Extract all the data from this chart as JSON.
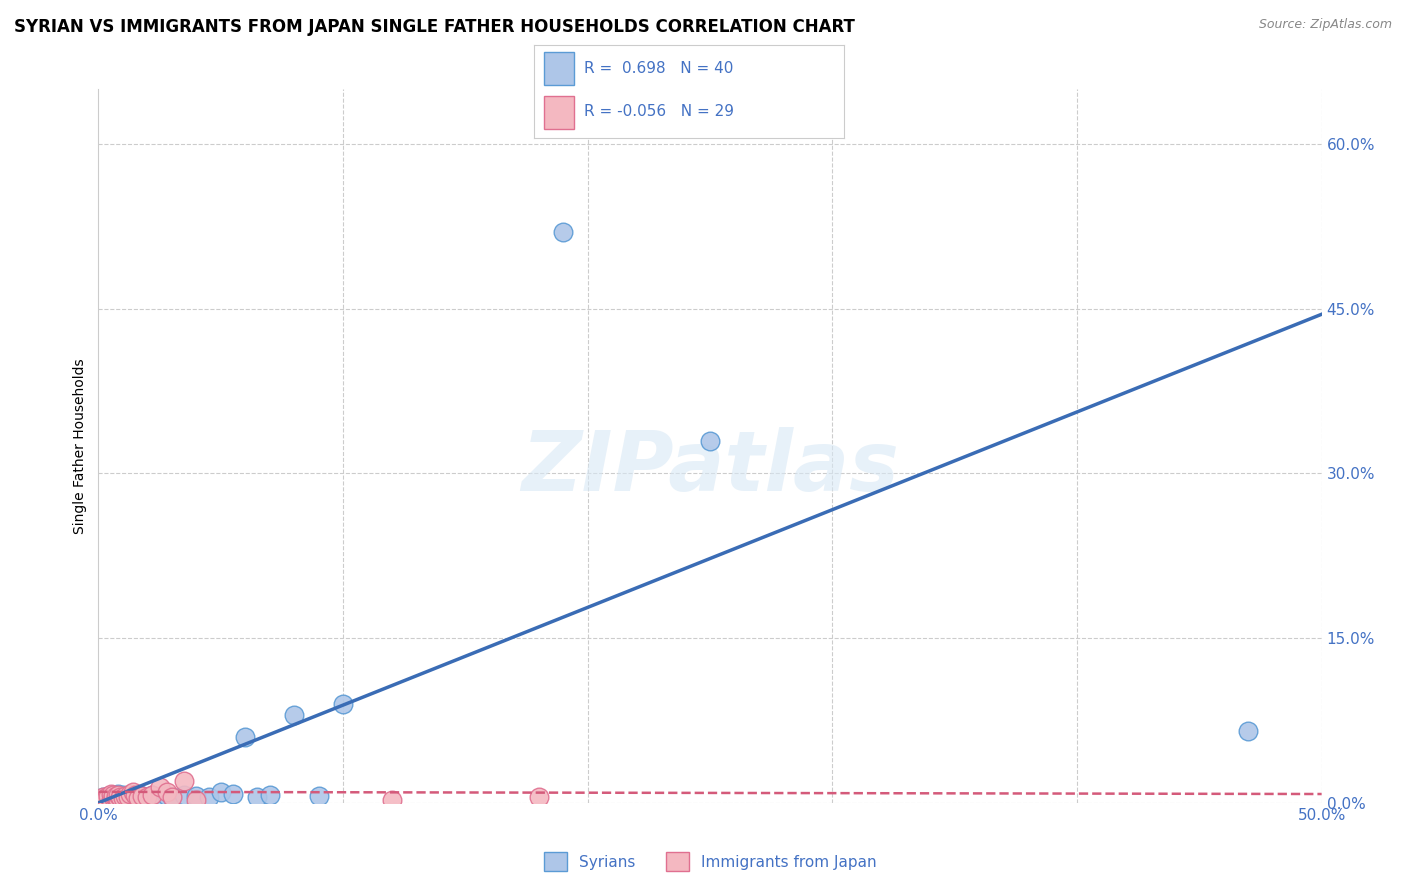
{
  "title": "SYRIAN VS IMMIGRANTS FROM JAPAN SINGLE FATHER HOUSEHOLDS CORRELATION CHART",
  "source": "Source: ZipAtlas.com",
  "ylabel": "Single Father Households",
  "xlim": [
    0.0,
    0.5
  ],
  "ylim": [
    0.0,
    0.65
  ],
  "ytick_labels": [
    "0.0%",
    "15.0%",
    "30.0%",
    "45.0%",
    "60.0%"
  ],
  "ytick_values": [
    0.0,
    0.15,
    0.3,
    0.45,
    0.6
  ],
  "grid_color": "#cccccc",
  "background_color": "#ffffff",
  "syrian_color": "#aec6e8",
  "syrian_edge_color": "#5b9bd5",
  "japan_color": "#f4b8c1",
  "japan_edge_color": "#e07090",
  "syrian_line_color": "#3a6cb5",
  "japan_line_color": "#d45a7a",
  "R_syrian": 0.698,
  "N_syrian": 40,
  "R_japan": -0.056,
  "N_japan": 29,
  "legend_text_color": "#4472c4",
  "title_fontsize": 12,
  "axis_label_fontsize": 10,
  "tick_fontsize": 11,
  "watermark": "ZIPatlas",
  "syrian_line_x0": 0.0,
  "syrian_line_y0": 0.0,
  "syrian_line_x1": 0.5,
  "syrian_line_y1": 0.445,
  "japan_line_x0": 0.0,
  "japan_line_y0": 0.01,
  "japan_line_x1": 0.5,
  "japan_line_y1": 0.008,
  "syrian_scatter_x": [
    0.002,
    0.003,
    0.004,
    0.005,
    0.006,
    0.006,
    0.007,
    0.007,
    0.008,
    0.008,
    0.009,
    0.01,
    0.01,
    0.011,
    0.012,
    0.013,
    0.014,
    0.015,
    0.016,
    0.017,
    0.018,
    0.02,
    0.022,
    0.025,
    0.028,
    0.03,
    0.035,
    0.04,
    0.045,
    0.05,
    0.055,
    0.06,
    0.065,
    0.07,
    0.08,
    0.09,
    0.1,
    0.19,
    0.25,
    0.47
  ],
  "syrian_scatter_y": [
    0.005,
    0.004,
    0.006,
    0.003,
    0.005,
    0.007,
    0.004,
    0.006,
    0.003,
    0.008,
    0.005,
    0.004,
    0.007,
    0.005,
    0.004,
    0.006,
    0.005,
    0.003,
    0.005,
    0.007,
    0.006,
    0.005,
    0.007,
    0.004,
    0.006,
    0.005,
    0.007,
    0.006,
    0.005,
    0.01,
    0.008,
    0.06,
    0.005,
    0.007,
    0.08,
    0.006,
    0.09,
    0.52,
    0.33,
    0.065
  ],
  "japan_scatter_x": [
    0.002,
    0.003,
    0.004,
    0.005,
    0.005,
    0.006,
    0.006,
    0.007,
    0.007,
    0.008,
    0.008,
    0.009,
    0.01,
    0.011,
    0.012,
    0.013,
    0.014,
    0.015,
    0.016,
    0.018,
    0.02,
    0.022,
    0.025,
    0.028,
    0.03,
    0.035,
    0.04,
    0.12,
    0.18
  ],
  "japan_scatter_y": [
    0.005,
    0.004,
    0.006,
    0.003,
    0.008,
    0.005,
    0.007,
    0.004,
    0.006,
    0.003,
    0.007,
    0.005,
    0.004,
    0.006,
    0.005,
    0.008,
    0.01,
    0.007,
    0.004,
    0.006,
    0.005,
    0.007,
    0.014,
    0.01,
    0.005,
    0.02,
    0.003,
    0.003,
    0.005
  ]
}
